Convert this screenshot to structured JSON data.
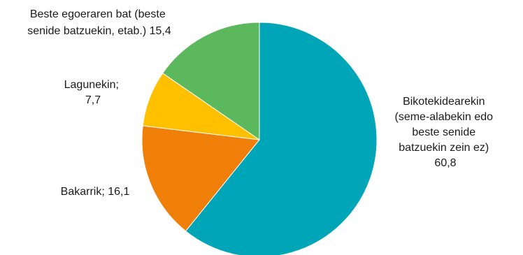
{
  "chart_data": {
    "type": "pie",
    "title": "",
    "start_angle_deg": 0,
    "direction": "clockwise",
    "legend": "none",
    "slices": [
      {
        "label": "Bikotekidearekin (seme-alabekin edo beste senide batzuekin zein ez)",
        "label_lines": [
          "Bikotekidearekin",
          "(seme-alabekin edo",
          "beste senide",
          "batzuekin zein ez)",
          "60,8"
        ],
        "value": 60.8,
        "color": "#00A6B8"
      },
      {
        "label": "Bakarrik",
        "label_lines": [
          "Bakarrik; 16,1"
        ],
        "value": 16.1,
        "color": "#F07F09"
      },
      {
        "label": "Lagunekin",
        "label_lines": [
          "Lagunekin;",
          "7,7"
        ],
        "value": 7.7,
        "color": "#FFC000"
      },
      {
        "label": "Beste egoeraren bat (beste senide batzuekin, etab.)",
        "label_lines": [
          "Beste egoeraren bat (beste",
          "senide batzuekin, etab.) 15,4"
        ],
        "value": 15.4,
        "color": "#5CB85C"
      }
    ]
  }
}
